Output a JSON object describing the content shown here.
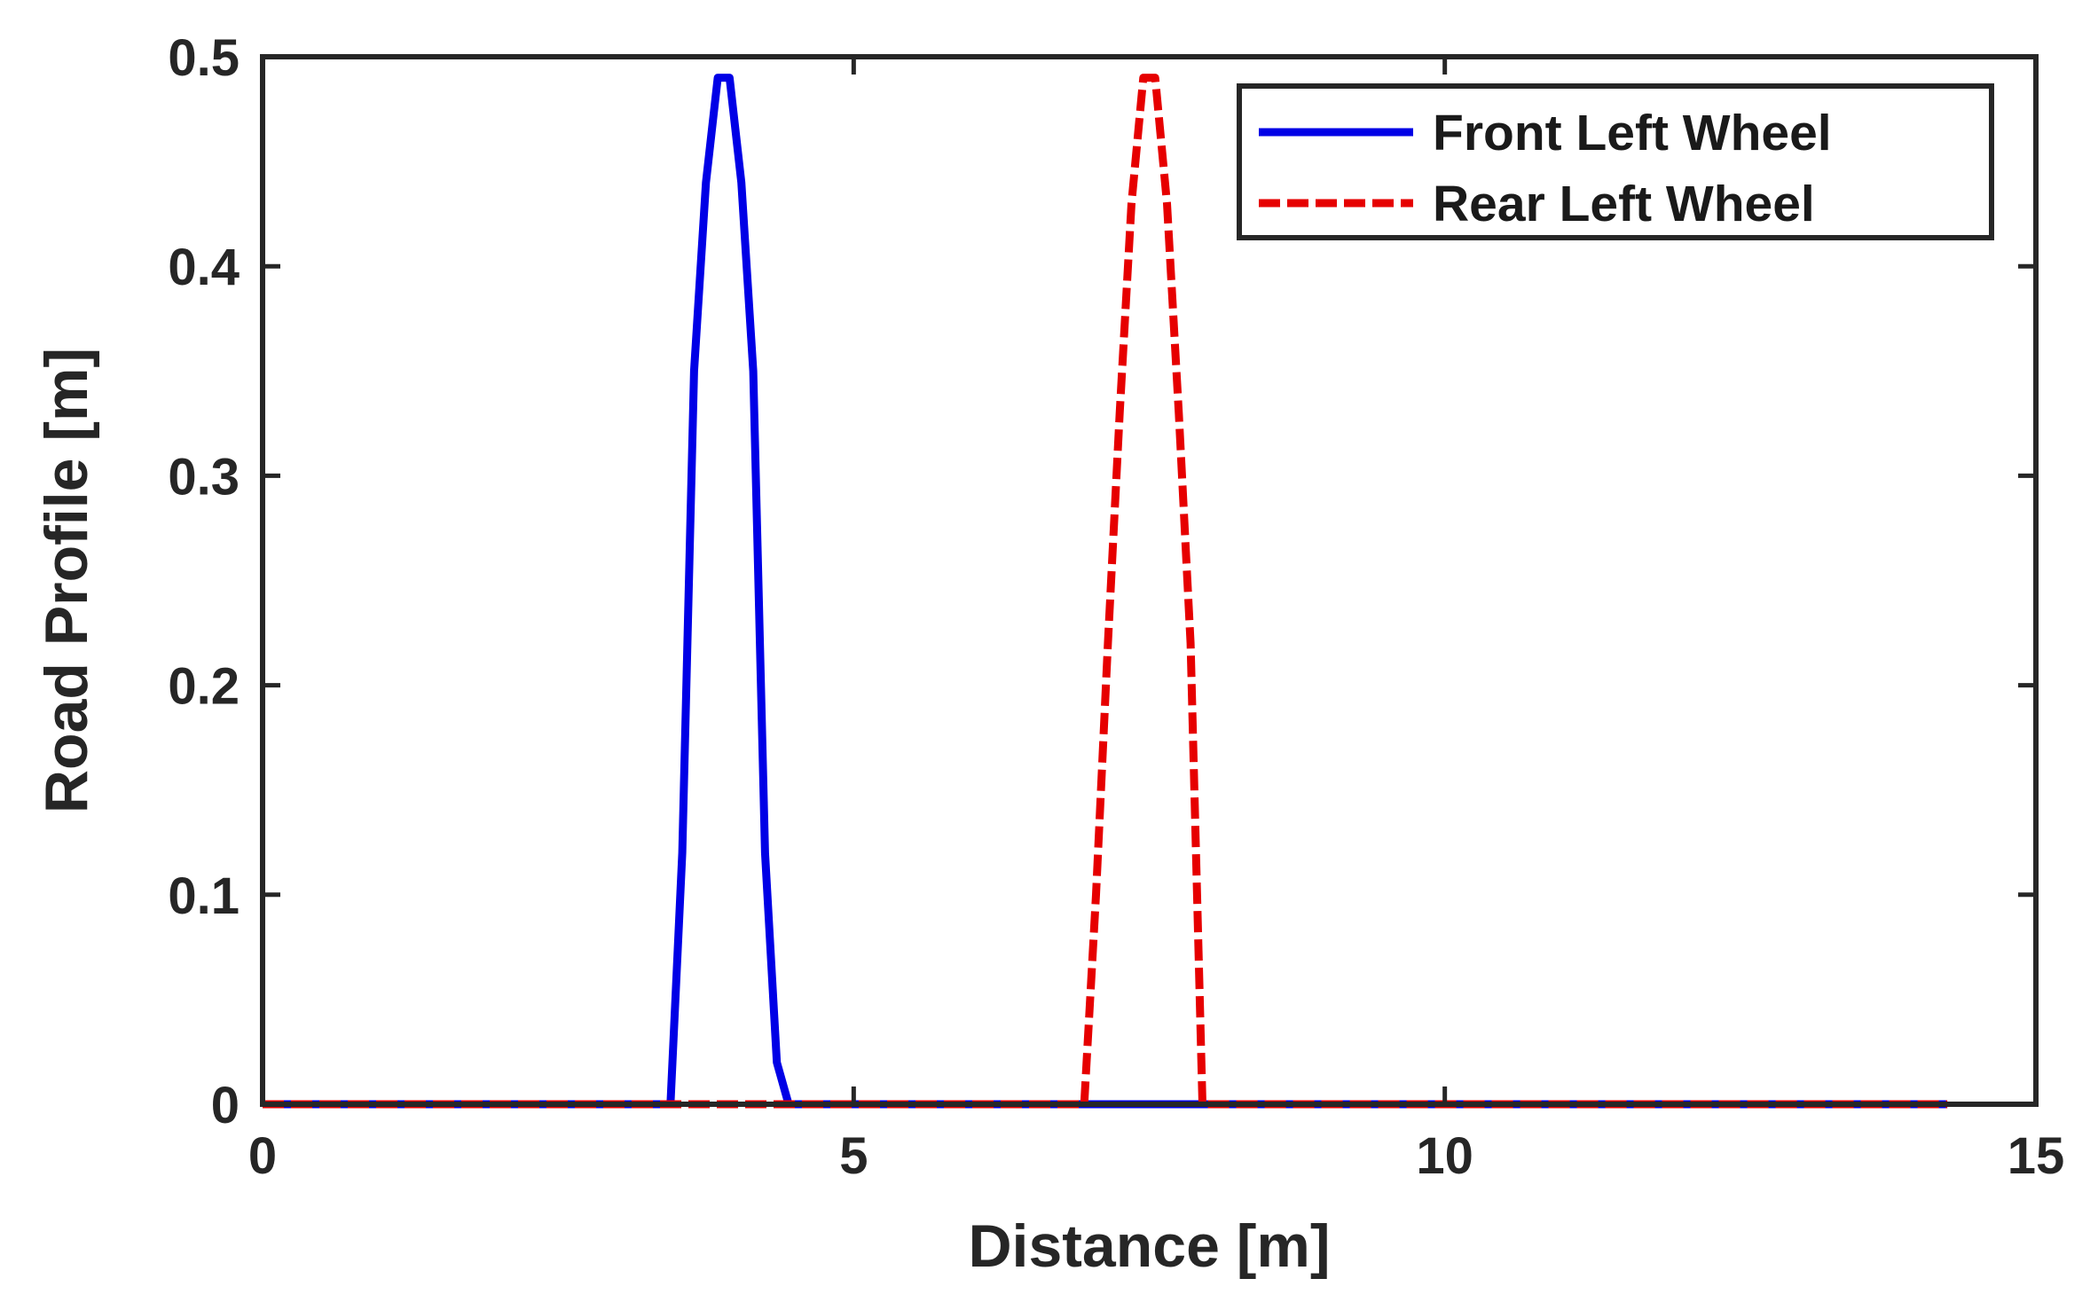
{
  "chart_data": {
    "type": "line",
    "xlabel": "Distance [m]",
    "ylabel": "Road Profile [m]",
    "xlim": [
      0,
      15
    ],
    "ylim": [
      0,
      0.5
    ],
    "x_ticks": [
      0,
      5,
      10,
      15
    ],
    "x_tick_labels": [
      "0",
      "5",
      "10",
      "15"
    ],
    "y_ticks": [
      0,
      0.1,
      0.2,
      0.3,
      0.4,
      0.5
    ],
    "y_tick_labels": [
      "0",
      "0.1",
      "0.2",
      "0.3",
      "0.4",
      "0.5"
    ],
    "grid": false,
    "legend_position": "top-right",
    "series": [
      {
        "name": "Front Left Wheel",
        "color": "#0000e6",
        "line_style": "solid",
        "x": [
          0,
          3.45,
          3.55,
          3.65,
          3.75,
          3.85,
          3.95,
          4.05,
          4.15,
          4.25,
          4.35,
          4.45,
          14.25
        ],
        "y": [
          0,
          0,
          0.12,
          0.35,
          0.44,
          0.49,
          0.49,
          0.44,
          0.35,
          0.12,
          0.02,
          0,
          0
        ]
      },
      {
        "name": "Rear Left Wheel",
        "color": "#e60000",
        "line_style": "dashed",
        "x": [
          0,
          6.95,
          7.05,
          7.15,
          7.25,
          7.35,
          7.45,
          7.55,
          7.65,
          7.75,
          7.85,
          7.95,
          14.25
        ],
        "y": [
          0,
          0,
          0.1,
          0.22,
          0.33,
          0.43,
          0.49,
          0.49,
          0.43,
          0.33,
          0.22,
          0,
          0
        ]
      }
    ]
  }
}
